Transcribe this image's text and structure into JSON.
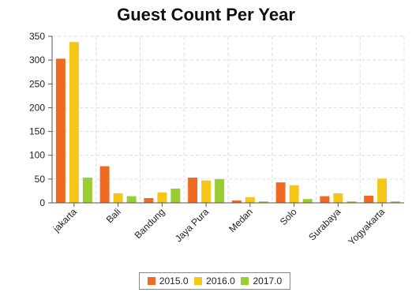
{
  "chart_data": {
    "type": "bar",
    "title": "Guest Count Per Year",
    "xlabel": "",
    "ylabel": "",
    "categories": [
      "jakarta",
      "Bali",
      "Bandung",
      "Jaya Pura",
      "Medan",
      "Solo",
      "Surabaya",
      "Yogyakarta"
    ],
    "series": [
      {
        "name": "2015.0",
        "color": "#f06a22",
        "values": [
          303,
          77,
          10,
          53,
          5,
          43,
          14,
          15
        ]
      },
      {
        "name": "2016.0",
        "color": "#f5c518",
        "values": [
          338,
          20,
          22,
          47,
          12,
          37,
          20,
          51
        ]
      },
      {
        "name": "2017.0",
        "color": "#9acd32",
        "values": [
          53,
          14,
          30,
          50,
          3,
          8,
          3,
          3
        ]
      }
    ],
    "ylim": [
      0,
      350
    ],
    "yticks": [
      0,
      50,
      100,
      150,
      200,
      250,
      300,
      350
    ],
    "grid": true,
    "legend_position": "bottom"
  }
}
